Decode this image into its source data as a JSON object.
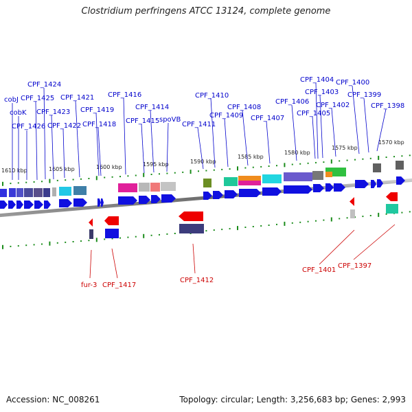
{
  "title": "Clostridium perfringens ATCC 13124, complete genome",
  "footer": {
    "accession": "Accession: NC_008261",
    "topology": "Topology: circular; Length: 3,256,683 bp; Genes: 2,993"
  },
  "kbp_labels": [
    "1610 kbp",
    "1605 kbp",
    "1600 kbp",
    "1595 kbp",
    "1590 kbp",
    "1585 kbp",
    "1580 kbp",
    "1575 kbp",
    "1570 kbp"
  ],
  "forward_labels": [
    "cobJ",
    "cobK",
    "CPF_1426",
    "CPF_1425",
    "CPF_1424",
    "CPF_1423",
    "CPF_1422",
    "CPF_1421",
    "CPF_1419",
    "CPF_1418",
    "CPF_1416",
    "CPF_1415",
    "CPF_1414",
    "spoVB",
    "CPF_1411",
    "CPF_1410",
    "CPF_1409",
    "CPF_1408",
    "CPF_1407",
    "CPF_1406",
    "CPF_1405",
    "CPF_1404",
    "CPF_1403",
    "CPF_1402",
    "CPF_1400",
    "CPF_1399",
    "CPF_1398"
  ],
  "reverse_labels": [
    "fur-3",
    "CPF_1417",
    "CPF_1412",
    "CPF_1401",
    "CPF_1397"
  ],
  "colors": {
    "forward_label": "#0000cc",
    "reverse_label": "#cc0000",
    "forward_gene": "#1010e0",
    "reverse_gene": "#ee0000",
    "backbone": "#777777",
    "tick": "#1a8c1a"
  }
}
